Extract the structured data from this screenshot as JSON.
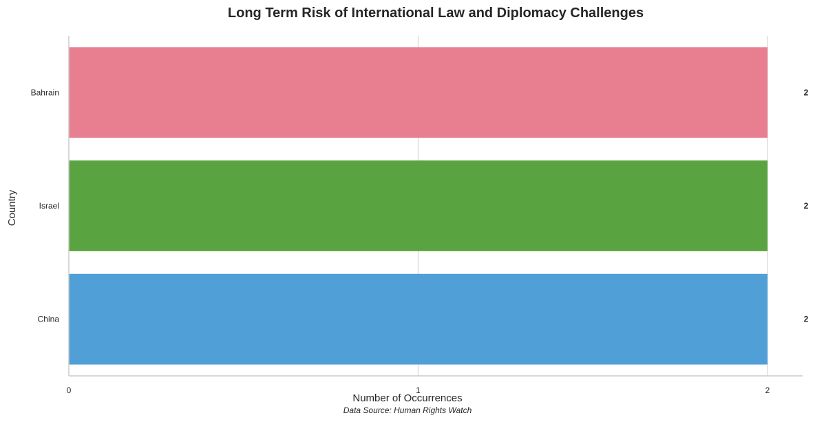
{
  "chart_data": {
    "type": "bar",
    "orientation": "horizontal",
    "title": "Long Term Risk of International Law and Diplomacy Challenges",
    "xlabel": "Number of Occurrences",
    "ylabel": "Country",
    "categories": [
      "Bahrain",
      "Israel",
      "China"
    ],
    "values": [
      2,
      2,
      2
    ],
    "data_labels": [
      "2",
      "2",
      "2"
    ],
    "colors": [
      "#e77f91",
      "#59a440",
      "#519fd7"
    ],
    "x_ticks": [
      "0",
      "1",
      "2"
    ],
    "xlim": [
      0,
      2.1
    ],
    "grid": "vertical",
    "legend": "none",
    "source_note": "Data Source: Human Rights Watch"
  }
}
